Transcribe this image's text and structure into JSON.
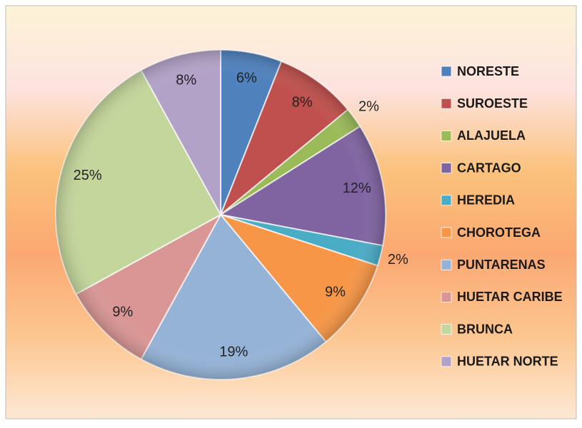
{
  "chart_data": {
    "type": "pie",
    "categories": [
      "NORESTE",
      "SUROESTE",
      "ALAJUELA",
      "CARTAGO",
      "HEREDIA",
      "CHOROTEGA",
      "PUNTARENAS",
      "HUETAR CARIBE",
      "BRUNCA",
      "HUETAR NORTE"
    ],
    "values": [
      6,
      8,
      2,
      12,
      2,
      9,
      19,
      9,
      25,
      8
    ],
    "value_labels": [
      "6%",
      "8%",
      "2%",
      "12%",
      "2%",
      "9%",
      "19%",
      "9%",
      "25%",
      "8%"
    ],
    "colors": [
      "#4f81bd",
      "#c0504d",
      "#9bbb59",
      "#8064a2",
      "#4bacc6",
      "#f79646",
      "#95b3d7",
      "#d99694",
      "#c3d69b",
      "#b3a2c7"
    ],
    "legend": "right"
  }
}
